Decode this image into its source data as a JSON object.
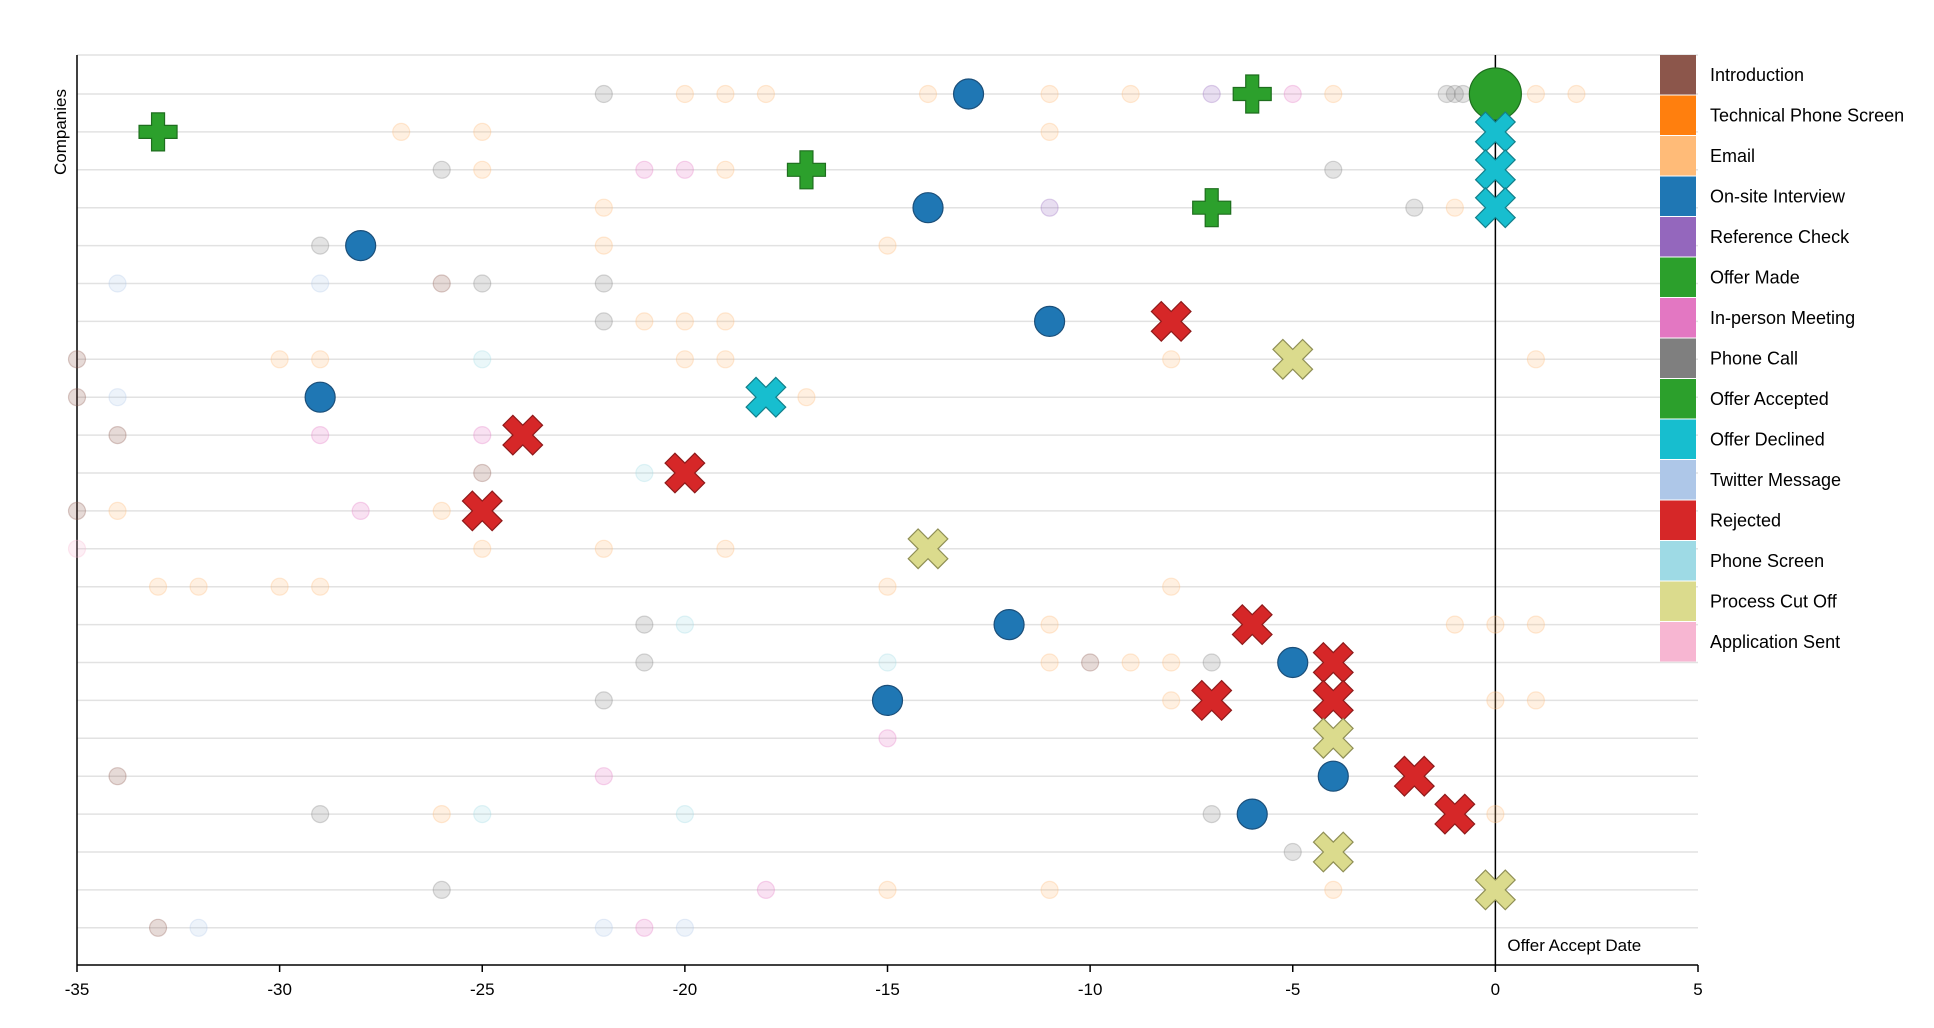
{
  "chart_data": {
    "type": "scatter",
    "ylabel": "Companies",
    "reference_line": {
      "x": 0,
      "label": "Offer Accept Date"
    },
    "xlim": [
      -35,
      5
    ],
    "xticks": [
      -35,
      -30,
      -25,
      -20,
      -15,
      -10,
      -5,
      0,
      5
    ],
    "row_count": 23,
    "grid": true,
    "legend_position": "right",
    "categories": [
      {
        "name": "Introduction",
        "color": "#8c564b"
      },
      {
        "name": "Technical Phone Screen",
        "color": "#ff7f0e"
      },
      {
        "name": "Email",
        "color": "#ffbb78"
      },
      {
        "name": "On-site Interview",
        "color": "#1f77b4"
      },
      {
        "name": "Reference Check",
        "color": "#9467bd"
      },
      {
        "name": "Offer Made",
        "color": "#2ca02c"
      },
      {
        "name": "In-person Meeting",
        "color": "#e377c2"
      },
      {
        "name": "Phone Call",
        "color": "#7f7f7f"
      },
      {
        "name": "Offer Accepted",
        "color": "#2ca02c"
      },
      {
        "name": "Offer Declined",
        "color": "#17becf"
      },
      {
        "name": "Twitter Message",
        "color": "#aec7e8"
      },
      {
        "name": "Rejected",
        "color": "#d62728"
      },
      {
        "name": "Phone Screen",
        "color": "#9edae5"
      },
      {
        "name": "Process Cut Off",
        "color": "#dbdb8d"
      },
      {
        "name": "Application Sent",
        "color": "#f7b6d2"
      }
    ],
    "rows": [
      [
        [
          -22,
          "Phone Call"
        ],
        [
          -20,
          "Email"
        ],
        [
          -19,
          "Email"
        ],
        [
          -18,
          "Email"
        ],
        [
          -14,
          "Email"
        ],
        [
          -13,
          "On-site Interview"
        ],
        [
          -11,
          "Email"
        ],
        [
          -9,
          "Email"
        ],
        [
          -7,
          "Reference Check"
        ],
        [
          -6,
          "Offer Made"
        ],
        [
          -5,
          "In-person Meeting"
        ],
        [
          -4,
          "Email"
        ],
        [
          -1.2,
          "Phone Call"
        ],
        [
          -1,
          "Phone Call"
        ],
        [
          -0.8,
          "Phone Call"
        ],
        [
          0,
          "Offer Accepted"
        ],
        [
          1,
          "Email"
        ],
        [
          2,
          "Email"
        ]
      ],
      [
        [
          -33,
          "Offer Made"
        ],
        [
          -27,
          "Email"
        ],
        [
          -25,
          "Email"
        ],
        [
          -11,
          "Email"
        ],
        [
          0,
          "Offer Declined"
        ]
      ],
      [
        [
          -26,
          "Phone Call"
        ],
        [
          -25,
          "Email"
        ],
        [
          -21,
          "In-person Meeting"
        ],
        [
          -20,
          "In-person Meeting"
        ],
        [
          -19,
          "Email"
        ],
        [
          -17,
          "Offer Made"
        ],
        [
          -4,
          "Phone Call"
        ],
        [
          0,
          "Offer Declined"
        ]
      ],
      [
        [
          -22,
          "Email"
        ],
        [
          -14,
          "On-site Interview"
        ],
        [
          -11,
          "Reference Check"
        ],
        [
          -7,
          "Offer Made"
        ],
        [
          -2,
          "Phone Call"
        ],
        [
          -1,
          "Email"
        ],
        [
          0,
          "Offer Declined"
        ]
      ],
      [
        [
          -29,
          "Phone Call"
        ],
        [
          -28,
          "On-site Interview"
        ],
        [
          -22,
          "Email"
        ],
        [
          -15,
          "Email"
        ]
      ],
      [
        [
          -34,
          "Twitter Message"
        ],
        [
          -29,
          "Twitter Message"
        ],
        [
          -26,
          "Introduction"
        ],
        [
          -25,
          "Phone Call"
        ],
        [
          -22,
          "Phone Call"
        ]
      ],
      [
        [
          -22,
          "Phone Call"
        ],
        [
          -21,
          "Email"
        ],
        [
          -20,
          "Email"
        ],
        [
          -19,
          "Email"
        ],
        [
          -11,
          "On-site Interview"
        ],
        [
          -8,
          "Rejected"
        ]
      ],
      [
        [
          -35,
          "Introduction"
        ],
        [
          -30,
          "Email"
        ],
        [
          -29,
          "Email"
        ],
        [
          -25,
          "Phone Screen"
        ],
        [
          -20,
          "Email"
        ],
        [
          -19,
          "Email"
        ],
        [
          -8,
          "Email"
        ],
        [
          -5,
          "Process Cut Off"
        ],
        [
          1,
          "Email"
        ]
      ],
      [
        [
          -35,
          "Introduction"
        ],
        [
          -34,
          "Twitter Message"
        ],
        [
          -29,
          "On-site Interview"
        ],
        [
          -18,
          "Offer Declined"
        ],
        [
          -17,
          "Email"
        ]
      ],
      [
        [
          -34,
          "Introduction"
        ],
        [
          -29,
          "In-person Meeting"
        ],
        [
          -25,
          "In-person Meeting"
        ],
        [
          -24,
          "Rejected"
        ]
      ],
      [
        [
          -25,
          "Introduction"
        ],
        [
          -21,
          "Phone Screen"
        ],
        [
          -20,
          "Rejected"
        ]
      ],
      [
        [
          -35,
          "Introduction"
        ],
        [
          -34,
          "Email"
        ],
        [
          -28,
          "In-person Meeting"
        ],
        [
          -26,
          "Email"
        ],
        [
          -25,
          "Rejected"
        ]
      ],
      [
        [
          -35,
          "Application Sent"
        ],
        [
          -25,
          "Email"
        ],
        [
          -22,
          "Email"
        ],
        [
          -19,
          "Email"
        ],
        [
          -14,
          "Process Cut Off"
        ]
      ],
      [
        [
          -33,
          "Email"
        ],
        [
          -32,
          "Email"
        ],
        [
          -30,
          "Email"
        ],
        [
          -29,
          "Email"
        ],
        [
          -15,
          "Email"
        ],
        [
          -8,
          "Email"
        ]
      ],
      [
        [
          -21,
          "Phone Call"
        ],
        [
          -20,
          "Phone Screen"
        ],
        [
          -12,
          "On-site Interview"
        ],
        [
          -11,
          "Email"
        ],
        [
          -6,
          "Rejected"
        ],
        [
          -1,
          "Email"
        ],
        [
          0,
          "Email"
        ],
        [
          1,
          "Email"
        ]
      ],
      [
        [
          -21,
          "Phone Call"
        ],
        [
          -15,
          "Phone Screen"
        ],
        [
          -11,
          "Email"
        ],
        [
          -10,
          "Introduction"
        ],
        [
          -9,
          "Email"
        ],
        [
          -8,
          "Email"
        ],
        [
          -7,
          "Phone Call"
        ],
        [
          -5,
          "On-site Interview"
        ],
        [
          -4,
          "Rejected"
        ]
      ],
      [
        [
          -22,
          "Phone Call"
        ],
        [
          -15,
          "On-site Interview"
        ],
        [
          -8,
          "Email"
        ],
        [
          -7,
          "Rejected"
        ],
        [
          -4,
          "Rejected"
        ],
        [
          0,
          "Email"
        ],
        [
          1,
          "Email"
        ]
      ],
      [
        [
          -15,
          "In-person Meeting"
        ],
        [
          -4,
          "Process Cut Off"
        ]
      ],
      [
        [
          -34,
          "Introduction"
        ],
        [
          -22,
          "In-person Meeting"
        ],
        [
          -4,
          "On-site Interview"
        ],
        [
          -2,
          "Rejected"
        ]
      ],
      [
        [
          -29,
          "Phone Call"
        ],
        [
          -26,
          "Email"
        ],
        [
          -25,
          "Phone Screen"
        ],
        [
          -20,
          "Phone Screen"
        ],
        [
          -7,
          "Phone Call"
        ],
        [
          -6,
          "On-site Interview"
        ],
        [
          -1,
          "Rejected"
        ],
        [
          0,
          "Email"
        ]
      ],
      [
        [
          -5,
          "Phone Call"
        ],
        [
          -4,
          "Process Cut Off"
        ]
      ],
      [
        [
          -26,
          "Phone Call"
        ],
        [
          -18,
          "In-person Meeting"
        ],
        [
          -15,
          "Email"
        ],
        [
          -11,
          "Email"
        ],
        [
          -4,
          "Email"
        ],
        [
          0,
          "Process Cut Off"
        ]
      ],
      [
        [
          -33,
          "Introduction"
        ],
        [
          -32,
          "Twitter Message"
        ],
        [
          -22,
          "Twitter Message"
        ],
        [
          -21,
          "In-person Meeting"
        ],
        [
          -20,
          "Twitter Message"
        ]
      ]
    ]
  }
}
